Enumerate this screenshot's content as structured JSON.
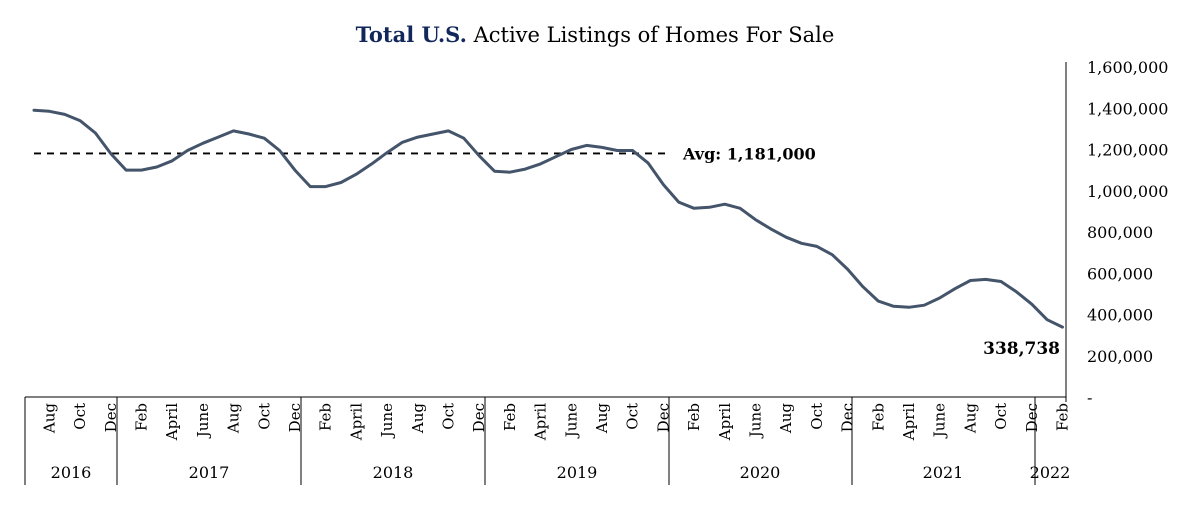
{
  "chart_data": {
    "type": "line",
    "title_bold": "Total U.S.",
    "title_rest": " Active Listings of Homes For Sale",
    "xlabel": "",
    "ylabel": "",
    "ylim": [
      0,
      1600000
    ],
    "y_ticks": [
      {
        "value": 0,
        "label": "-"
      },
      {
        "value": 200000,
        "label": "200,000"
      },
      {
        "value": 400000,
        "label": "400,000"
      },
      {
        "value": 600000,
        "label": "600,000"
      },
      {
        "value": 800000,
        "label": "800,000"
      },
      {
        "value": 1000000,
        "label": "1,000,000"
      },
      {
        "value": 1200000,
        "label": "1,200,000"
      },
      {
        "value": 1400000,
        "label": "1,400,000"
      },
      {
        "value": 1600000,
        "label": "1,600,000"
      }
    ],
    "axis_position": "right",
    "grid": false,
    "legend": "none",
    "line_color": "#44546a",
    "x": [
      "2016-07",
      "2016-08",
      "2016-09",
      "2016-10",
      "2016-11",
      "2016-12",
      "2017-01",
      "2017-02",
      "2017-03",
      "2017-04",
      "2017-05",
      "2017-06",
      "2017-07",
      "2017-08",
      "2017-09",
      "2017-10",
      "2017-11",
      "2017-12",
      "2018-01",
      "2018-02",
      "2018-03",
      "2018-04",
      "2018-05",
      "2018-06",
      "2018-07",
      "2018-08",
      "2018-09",
      "2018-10",
      "2018-11",
      "2018-12",
      "2019-01",
      "2019-02",
      "2019-03",
      "2019-04",
      "2019-05",
      "2019-06",
      "2019-07",
      "2019-08",
      "2019-09",
      "2019-10",
      "2019-11",
      "2019-12",
      "2020-01",
      "2020-02",
      "2020-03",
      "2020-04",
      "2020-05",
      "2020-06",
      "2020-07",
      "2020-08",
      "2020-09",
      "2020-10",
      "2020-11",
      "2020-12",
      "2021-01",
      "2021-02",
      "2021-03",
      "2021-04",
      "2021-05",
      "2021-06",
      "2021-07",
      "2021-08",
      "2021-09",
      "2021-10",
      "2021-11",
      "2021-12",
      "2022-01",
      "2022-02"
    ],
    "series": [
      {
        "values": [
          1390000,
          1385000,
          1370000,
          1340000,
          1280000,
          1180000,
          1100000,
          1100000,
          1115000,
          1145000,
          1195000,
          1230000,
          1260000,
          1290000,
          1275000,
          1255000,
          1195000,
          1100000,
          1020000,
          1020000,
          1040000,
          1080000,
          1130000,
          1185000,
          1235000,
          1260000,
          1275000,
          1290000,
          1255000,
          1170000,
          1095000,
          1090000,
          1105000,
          1130000,
          1165000,
          1200000,
          1220000,
          1210000,
          1195000,
          1195000,
          1135000,
          1030000,
          945000,
          915000,
          920000,
          935000,
          915000,
          860000,
          815000,
          775000,
          745000,
          730000,
          690000,
          620000,
          535000,
          465000,
          440000,
          435000,
          445000,
          480000,
          525000,
          565000,
          570000,
          560000,
          510000,
          450000,
          375000,
          338738
        ]
      }
    ],
    "months_shown": [
      "Aug",
      "Oct",
      "Dec",
      "Feb",
      "April",
      "June",
      "Aug",
      "Oct",
      "Dec",
      "Feb",
      "April",
      "June",
      "Aug",
      "Oct",
      "Dec",
      "Feb",
      "April",
      "June",
      "Aug",
      "Oct",
      "Dec",
      "Feb",
      "April",
      "June",
      "Aug",
      "Oct",
      "Dec",
      "Feb",
      "April",
      "June",
      "Aug",
      "Oct",
      "Dec",
      "Feb"
    ],
    "years": [
      "2016",
      "2017",
      "2018",
      "2019",
      "2020",
      "2021",
      "2022"
    ],
    "average": {
      "value": 1181000,
      "label": "Avg: 1,181,000"
    },
    "last_value_label": "338,738"
  }
}
